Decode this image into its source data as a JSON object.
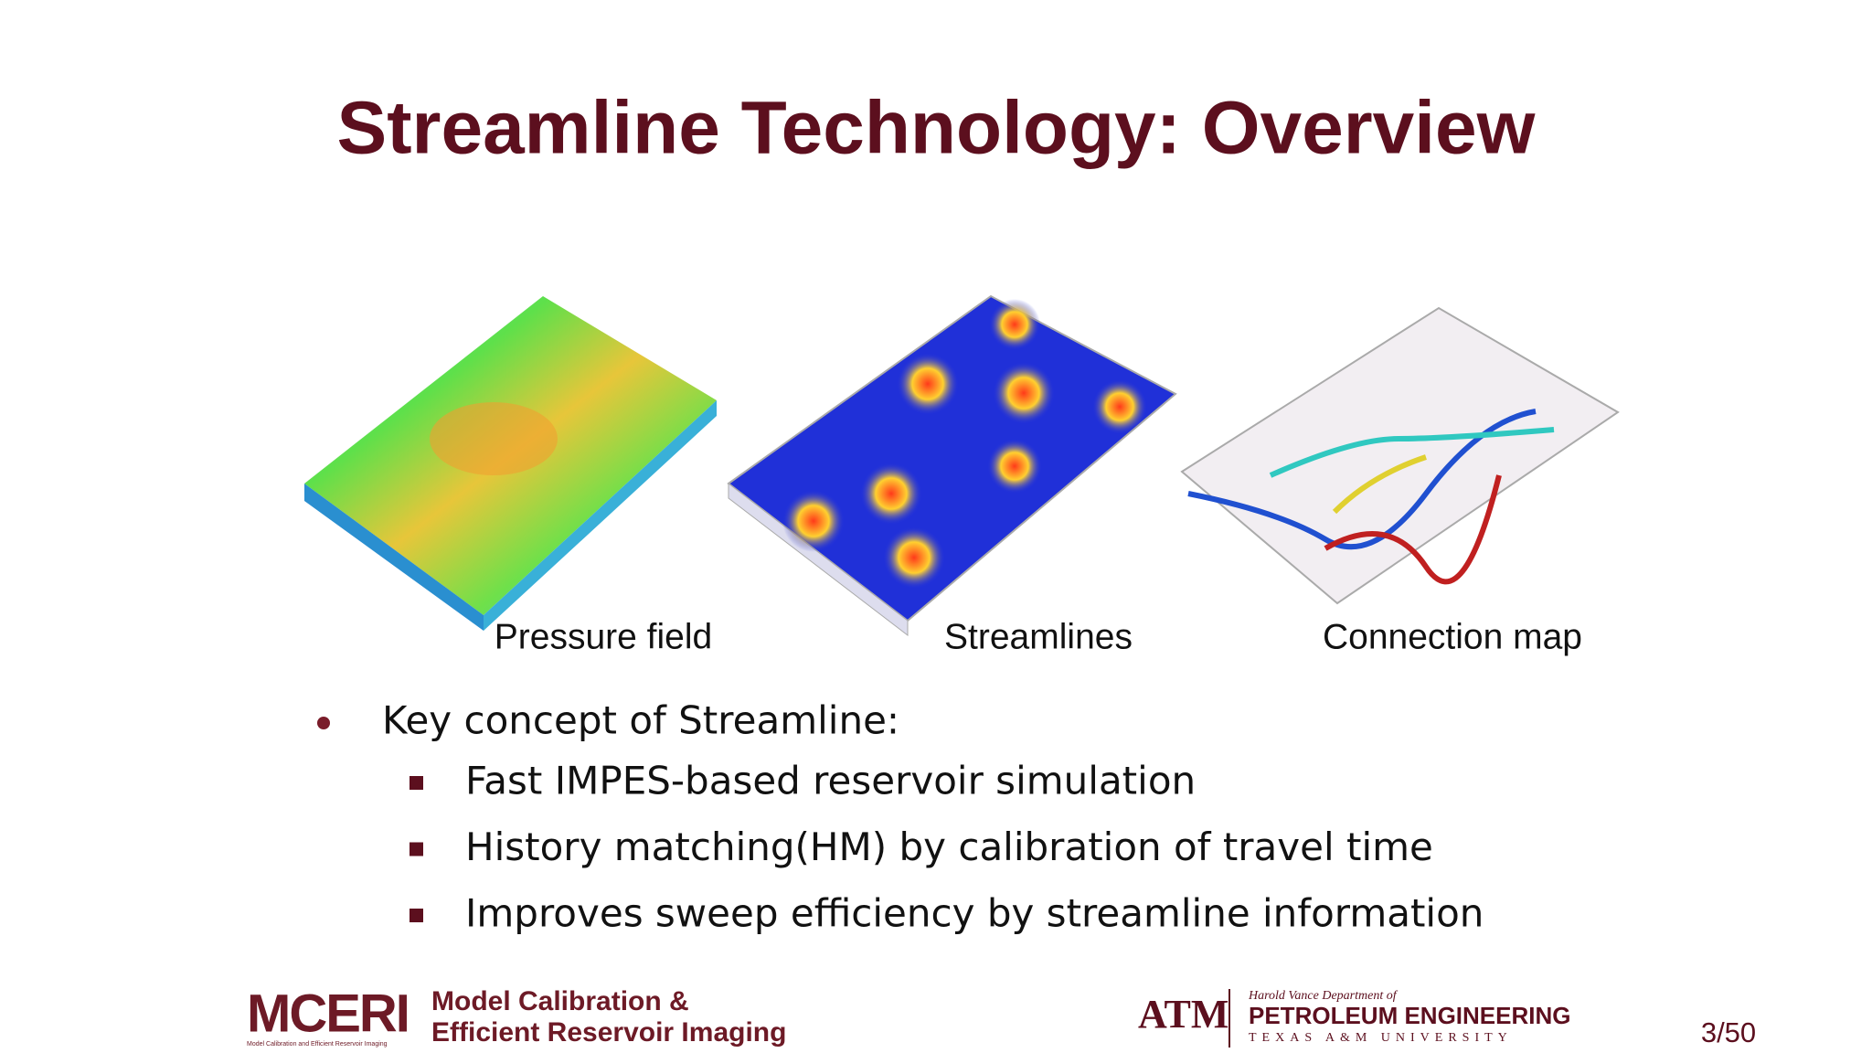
{
  "header": {
    "title": "Streamline Technology: Overview"
  },
  "figures": [
    {
      "caption": "Pressure field"
    },
    {
      "caption": "Streamlines"
    },
    {
      "caption": "Connection map"
    }
  ],
  "bullets": {
    "main": "Key concept of Streamline:",
    "items": [
      "Fast IMPES-based reservoir simulation",
      "History matching(HM) by calibration of travel time",
      "Improves sweep efficiency by streamline information"
    ]
  },
  "footer": {
    "mceri": "MCERI",
    "mceri_small": "Model Calibration and Efficient Reservoir Imaging",
    "mceri_line1": "Model Calibration &",
    "mceri_line2": "Efficient Reservoir Imaging",
    "atm": "ATM",
    "dept": "Harold Vance Department of",
    "pe": "PETROLEUM ENGINEERING",
    "tamu": "TEXAS A&M UNIVERSITY",
    "page": "3/50"
  }
}
